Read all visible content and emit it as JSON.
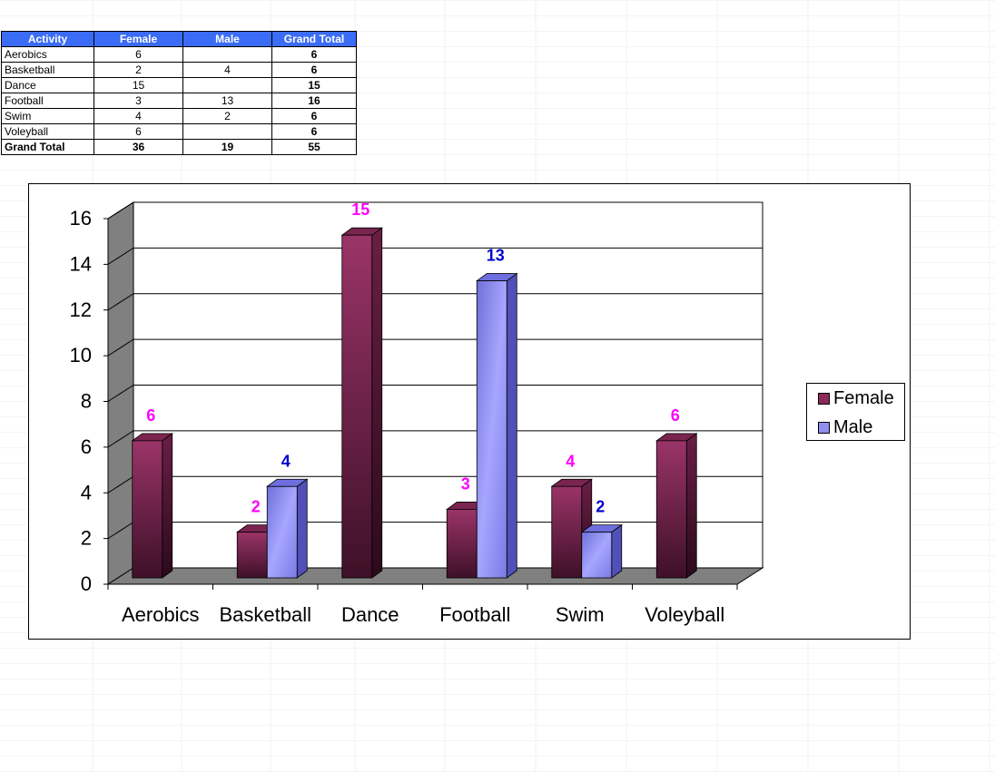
{
  "table": {
    "headers": [
      "Activity",
      "Female",
      "Male",
      "Grand Total"
    ],
    "rows": [
      {
        "activity": "Aerobics",
        "female": "6",
        "male": "",
        "total": "6"
      },
      {
        "activity": "Basketball",
        "female": "2",
        "male": "4",
        "total": "6"
      },
      {
        "activity": "Dance",
        "female": "15",
        "male": "",
        "total": "15"
      },
      {
        "activity": "Football",
        "female": "3",
        "male": "13",
        "total": "16"
      },
      {
        "activity": "Swim",
        "female": "4",
        "male": "2",
        "total": "6"
      },
      {
        "activity": "Voleyball",
        "female": "6",
        "male": "",
        "total": "6"
      }
    ],
    "grand_total": {
      "activity": "Grand Total",
      "female": "36",
      "male": "19",
      "total": "55"
    },
    "header_color": "#3b6cf5"
  },
  "chart_data": {
    "type": "bar",
    "style": "3d-clustered-column",
    "categories": [
      "Aerobics",
      "Basketball",
      "Dance",
      "Football",
      "Swim",
      "Voleyball"
    ],
    "series": [
      {
        "name": "Female",
        "values": [
          6,
          2,
          15,
          3,
          4,
          6
        ],
        "color": "#8b2a5a",
        "label_color": "#ff00ff"
      },
      {
        "name": "Male",
        "values": [
          null,
          4,
          null,
          13,
          2,
          null
        ],
        "color": "#8f8fef",
        "label_color": "#0000cc"
      }
    ],
    "yticks": [
      "0",
      "2",
      "4",
      "6",
      "8",
      "10",
      "12",
      "14",
      "16"
    ],
    "ylim": [
      0,
      16
    ],
    "grid": true,
    "legend_position": "right",
    "wall_color": "#808080",
    "floor_color": "#808080"
  }
}
